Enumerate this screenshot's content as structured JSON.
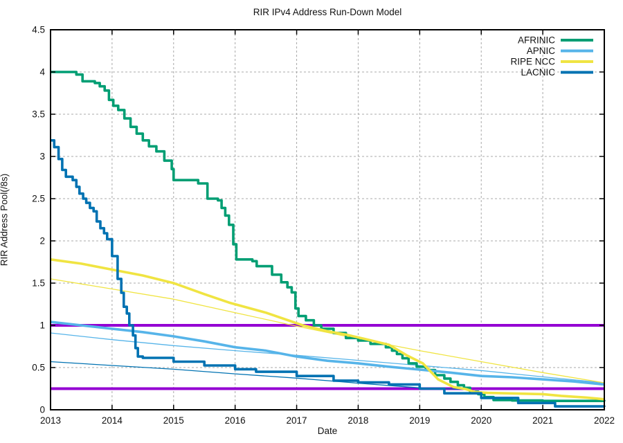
{
  "chart_data": {
    "type": "line",
    "title": "RIR IPv4 Address Run-Down Model",
    "xlabel": "Date",
    "ylabel": "RIR Address Pool(/8s)",
    "xlim": [
      2013,
      2022
    ],
    "ylim": [
      0,
      4.5
    ],
    "x_ticks": [
      2013,
      2014,
      2015,
      2016,
      2017,
      2018,
      2019,
      2020,
      2021,
      2022
    ],
    "y_ticks": [
      0,
      0.5,
      1,
      1.5,
      2,
      2.5,
      3,
      3.5,
      4,
      4.5
    ],
    "y_tick_labels": [
      "0",
      "0.5",
      "1",
      "1.5",
      "2",
      "2.5",
      "3",
      "3.5",
      "4",
      "4.5"
    ],
    "grid": true,
    "grid_color": "#a8a8a8",
    "axis_color": "#000000",
    "background": "#ffffff",
    "legend_position": "top-right",
    "thresholds": [
      {
        "name": "threshold-one-slash-8",
        "value": 1.0,
        "color": "#9400d3",
        "width": 4
      },
      {
        "name": "threshold-quarter-slash-8",
        "value": 0.25,
        "color": "#9400d3",
        "width": 4
      }
    ],
    "series": [
      {
        "name": "AFRINIC",
        "color": "#009e73",
        "width": 3.6,
        "interp": "step",
        "legend": true,
        "points": [
          [
            2013,
            4.0
          ],
          [
            2013.42,
            3.97
          ],
          [
            2013.52,
            3.89
          ],
          [
            2013.72,
            3.87
          ],
          [
            2013.8,
            3.83
          ],
          [
            2013.88,
            3.78
          ],
          [
            2013.95,
            3.67
          ],
          [
            2014.02,
            3.6
          ],
          [
            2014.1,
            3.55
          ],
          [
            2014.2,
            3.45
          ],
          [
            2014.3,
            3.35
          ],
          [
            2014.4,
            3.27
          ],
          [
            2014.5,
            3.19
          ],
          [
            2014.6,
            3.12
          ],
          [
            2014.72,
            3.06
          ],
          [
            2014.85,
            2.95
          ],
          [
            2014.97,
            2.85
          ],
          [
            2015.0,
            2.72
          ],
          [
            2015.3,
            2.72
          ],
          [
            2015.4,
            2.68
          ],
          [
            2015.55,
            2.5
          ],
          [
            2015.72,
            2.48
          ],
          [
            2015.78,
            2.39
          ],
          [
            2015.84,
            2.3
          ],
          [
            2015.9,
            2.19
          ],
          [
            2015.97,
            1.96
          ],
          [
            2016.02,
            1.78
          ],
          [
            2016.28,
            1.76
          ],
          [
            2016.35,
            1.7
          ],
          [
            2016.6,
            1.6
          ],
          [
            2016.75,
            1.51
          ],
          [
            2016.85,
            1.45
          ],
          [
            2016.92,
            1.39
          ],
          [
            2016.98,
            1.2
          ],
          [
            2017.03,
            1.11
          ],
          [
            2017.15,
            1.06
          ],
          [
            2017.28,
            1.0
          ],
          [
            2017.4,
            0.96
          ],
          [
            2017.6,
            0.91
          ],
          [
            2017.8,
            0.85
          ],
          [
            2018.0,
            0.82
          ],
          [
            2018.2,
            0.78
          ],
          [
            2018.45,
            0.74
          ],
          [
            2018.55,
            0.7
          ],
          [
            2018.63,
            0.66
          ],
          [
            2018.72,
            0.61
          ],
          [
            2018.82,
            0.55
          ],
          [
            2018.95,
            0.51
          ],
          [
            2019.1,
            0.47
          ],
          [
            2019.25,
            0.41
          ],
          [
            2019.4,
            0.37
          ],
          [
            2019.5,
            0.33
          ],
          [
            2019.62,
            0.29
          ],
          [
            2019.72,
            0.26
          ],
          [
            2019.82,
            0.215
          ],
          [
            2019.95,
            0.185
          ],
          [
            2020.05,
            0.15
          ],
          [
            2020.2,
            0.115
          ],
          [
            2020.5,
            0.11
          ],
          [
            2021,
            0.105
          ],
          [
            2022,
            0.1
          ]
        ]
      },
      {
        "name": "APNIC",
        "color": "#56b4e9",
        "width": 3.6,
        "interp": "linear",
        "legend": true,
        "points": [
          [
            2013,
            1.04
          ],
          [
            2013.5,
            1.0
          ],
          [
            2014,
            0.96
          ],
          [
            2014.5,
            0.92
          ],
          [
            2015,
            0.87
          ],
          [
            2015.5,
            0.81
          ],
          [
            2016,
            0.74
          ],
          [
            2016.5,
            0.7
          ],
          [
            2017,
            0.63
          ],
          [
            2017.5,
            0.58
          ],
          [
            2018,
            0.55
          ],
          [
            2018.5,
            0.51
          ],
          [
            2019,
            0.475
          ],
          [
            2019.5,
            0.44
          ],
          [
            2020,
            0.4
          ],
          [
            2020.5,
            0.385
          ],
          [
            2021,
            0.36
          ],
          [
            2021.5,
            0.335
          ],
          [
            2022,
            0.3
          ]
        ]
      },
      {
        "name": "RIPE NCC",
        "color": "#f0e442",
        "width": 3.6,
        "interp": "linear",
        "legend": true,
        "points": [
          [
            2013,
            1.78
          ],
          [
            2013.5,
            1.73
          ],
          [
            2014,
            1.66
          ],
          [
            2014.5,
            1.59
          ],
          [
            2015,
            1.5
          ],
          [
            2015.5,
            1.37
          ],
          [
            2015.9,
            1.27
          ],
          [
            2016.5,
            1.15
          ],
          [
            2017.1,
            1.0
          ],
          [
            2017.5,
            0.93
          ],
          [
            2017.8,
            0.89
          ],
          [
            2018.1,
            0.84
          ],
          [
            2018.5,
            0.77
          ],
          [
            2018.8,
            0.64
          ],
          [
            2019.05,
            0.55
          ],
          [
            2019.3,
            0.36
          ],
          [
            2019.55,
            0.27
          ],
          [
            2019.75,
            0.245
          ],
          [
            2019.9,
            0.21
          ],
          [
            2020.1,
            0.2
          ],
          [
            2021,
            0.185
          ],
          [
            2021.3,
            0.165
          ],
          [
            2021.7,
            0.145
          ],
          [
            2022,
            0.125
          ]
        ]
      },
      {
        "name": "LACNIC",
        "color": "#0072b2",
        "width": 3.6,
        "interp": "step",
        "legend": true,
        "points": [
          [
            2013,
            3.19
          ],
          [
            2013.06,
            3.11
          ],
          [
            2013.13,
            2.97
          ],
          [
            2013.19,
            2.84
          ],
          [
            2013.25,
            2.76
          ],
          [
            2013.36,
            2.72
          ],
          [
            2013.42,
            2.64
          ],
          [
            2013.47,
            2.56
          ],
          [
            2013.53,
            2.5
          ],
          [
            2013.58,
            2.45
          ],
          [
            2013.64,
            2.39
          ],
          [
            2013.7,
            2.35
          ],
          [
            2013.75,
            2.23
          ],
          [
            2013.81,
            2.15
          ],
          [
            2013.87,
            2.09
          ],
          [
            2013.92,
            2.02
          ],
          [
            2014.0,
            1.82
          ],
          [
            2014.09,
            1.55
          ],
          [
            2014.15,
            1.385
          ],
          [
            2014.19,
            1.22
          ],
          [
            2014.24,
            1.14
          ],
          [
            2014.28,
            1.0
          ],
          [
            2014.34,
            0.88
          ],
          [
            2014.38,
            0.73
          ],
          [
            2014.42,
            0.63
          ],
          [
            2014.5,
            0.615
          ],
          [
            2015,
            0.57
          ],
          [
            2015.5,
            0.525
          ],
          [
            2016,
            0.48
          ],
          [
            2016.34,
            0.45
          ],
          [
            2017,
            0.4
          ],
          [
            2017.6,
            0.345
          ],
          [
            2018,
            0.325
          ],
          [
            2018.5,
            0.3
          ],
          [
            2019,
            0.25
          ],
          [
            2019.4,
            0.195
          ],
          [
            2020,
            0.14
          ],
          [
            2020.6,
            0.08
          ],
          [
            2021.2,
            0.04
          ],
          [
            2022,
            0.035
          ]
        ]
      },
      {
        "name": "APNIC model",
        "color": "#56b4e9",
        "width": 1.3,
        "interp": "linear",
        "legend": false,
        "points": [
          [
            2013,
            0.91
          ],
          [
            2014,
            0.83
          ],
          [
            2015,
            0.76
          ],
          [
            2016,
            0.7
          ],
          [
            2017,
            0.645
          ],
          [
            2018,
            0.585
          ],
          [
            2019,
            0.525
          ],
          [
            2020,
            0.465
          ],
          [
            2021,
            0.39
          ],
          [
            2022,
            0.32
          ]
        ]
      },
      {
        "name": "RIPE NCC model",
        "color": "#f0e442",
        "width": 1.3,
        "interp": "linear",
        "legend": false,
        "points": [
          [
            2013,
            1.55
          ],
          [
            2014,
            1.43
          ],
          [
            2015,
            1.31
          ],
          [
            2016,
            1.15
          ],
          [
            2017,
            0.99
          ],
          [
            2018,
            0.84
          ],
          [
            2019,
            0.7
          ],
          [
            2020,
            0.57
          ],
          [
            2021,
            0.44
          ],
          [
            2022,
            0.32
          ]
        ]
      },
      {
        "name": "LACNIC model",
        "color": "#0072b2",
        "width": 1.3,
        "interp": "linear",
        "legend": false,
        "points": [
          [
            2013,
            0.57
          ],
          [
            2014,
            0.525
          ],
          [
            2015,
            0.48
          ],
          [
            2016,
            0.425
          ],
          [
            2017,
            0.375
          ],
          [
            2018,
            0.315
          ],
          [
            2019,
            0.26
          ],
          [
            2019.7,
            0.243
          ]
        ]
      }
    ]
  }
}
